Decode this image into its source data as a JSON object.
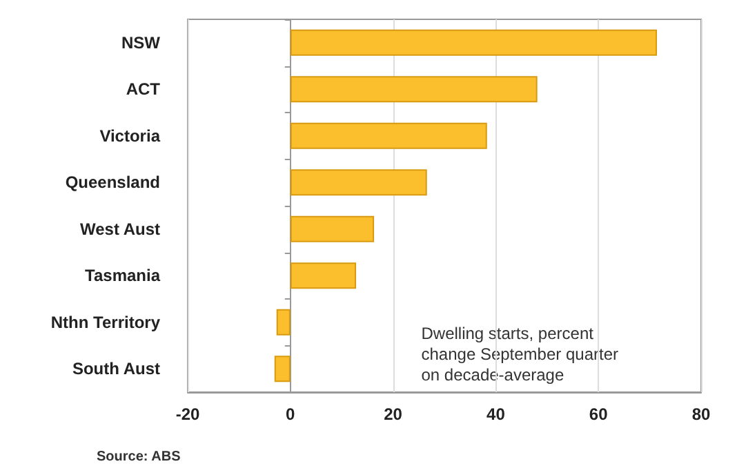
{
  "chart_data": {
    "type": "bar",
    "orientation": "horizontal",
    "categories": [
      "NSW",
      "ACT",
      "Victoria",
      "Queensland",
      "West Aust",
      "Tasmania",
      "Nthn Territory",
      "South Aust"
    ],
    "values": [
      71.4,
      48.1,
      38.3,
      26.6,
      16.3,
      12.8,
      -2.7,
      -3.1
    ],
    "color": "#fbbf2e",
    "xlim": [
      -20,
      80
    ],
    "xticks": [
      -20,
      0,
      20,
      40,
      60,
      80
    ],
    "grid": "x",
    "annotations": [
      "Dwelling starts, percent\nchange September quarter\non decade-average",
      "Source: ABS"
    ]
  }
}
